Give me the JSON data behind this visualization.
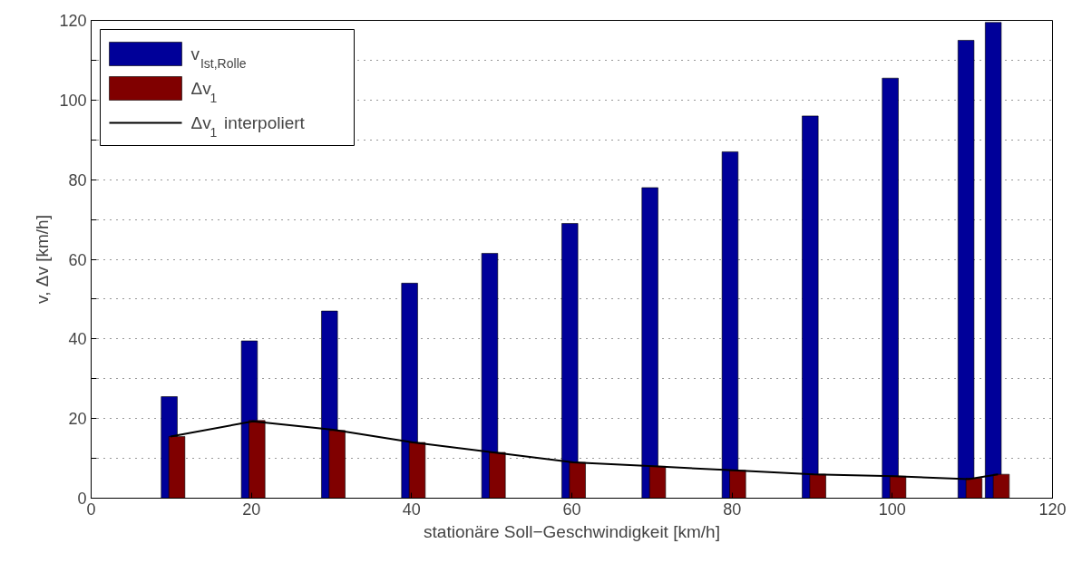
{
  "chart_data": {
    "type": "bar",
    "xlabel": "stationäre Soll−Geschwindigkeit [km/h]",
    "ylabel": "v, Δv [km/h]",
    "xlim": [
      0,
      120
    ],
    "xticks": [
      0,
      20,
      40,
      60,
      80,
      100,
      120
    ],
    "ylim": [
      0,
      120
    ],
    "yticks": [
      0,
      {
        "value": 10,
        "label": null
      },
      20,
      {
        "value": 30,
        "label": null
      },
      40,
      {
        "value": 50,
        "label": null
      },
      60,
      {
        "value": 70,
        "label": null
      },
      80,
      {
        "value": 90,
        "label": null
      },
      100,
      {
        "value": 110,
        "label": null
      },
      120
    ],
    "grid": "y",
    "legend": "top left",
    "series": [
      {
        "name": "v$_{Ist,Rolle}$",
        "color": "#000099",
        "x": [
          9.75,
          19.75,
          29.75,
          39.75,
          49.75,
          59.75,
          69.75,
          79.75,
          89.75,
          99.75,
          109.2,
          112.6
        ],
        "values": [
          25.5,
          39.5,
          47,
          54,
          61.5,
          69,
          78,
          87,
          96,
          105.5,
          115,
          119.5
        ]
      },
      {
        "name": "Δv$_{1}$",
        "color": "#800000",
        "x": [
          10.7,
          20.7,
          30.7,
          40.7,
          50.7,
          60.7,
          70.7,
          80.7,
          90.7,
          100.7,
          110.2,
          113.6
        ],
        "values": [
          15.5,
          19.5,
          17,
          14,
          11.5,
          9,
          8,
          7,
          6,
          5.5,
          5,
          6
        ]
      },
      {
        "name": "Δv$_{1}$ interpoliert",
        "type": "line",
        "color": "#000000",
        "x": [
          9.9,
          20.2,
          30.2,
          40.2,
          50.2,
          60.2,
          70.2,
          80.2,
          90.2,
          100.2,
          109.5,
          113.2
        ],
        "values": [
          15.5,
          19.3,
          17.2,
          14,
          11.5,
          9,
          8,
          7,
          6,
          5.5,
          4.8,
          6
        ]
      }
    ]
  }
}
